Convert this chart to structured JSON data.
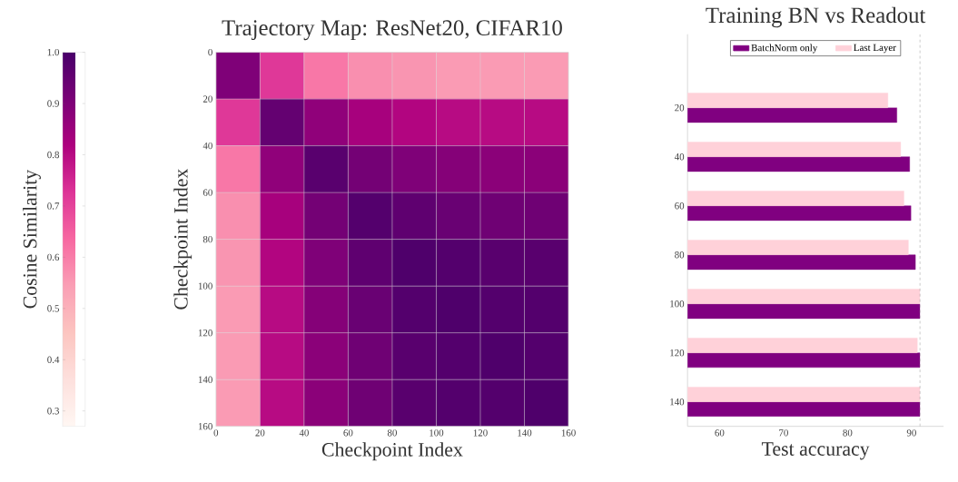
{
  "chart_data": [
    {
      "type": "heatmap",
      "title": "Trajectory Map: ResNet20, CIFAR10",
      "xlabel": "Checkpoint Index",
      "ylabel": "Checkpoint Index",
      "clabel": "Cosine Similarity",
      "x": [
        10,
        30,
        50,
        70,
        90,
        110,
        130,
        150
      ],
      "xlim": [
        0,
        160
      ],
      "xticks": [
        0,
        20,
        40,
        60,
        80,
        100,
        120,
        140,
        160
      ],
      "ylim": [
        160,
        0
      ],
      "yticks": [
        0,
        20,
        40,
        60,
        80,
        100,
        120,
        140,
        160
      ],
      "grid": true,
      "clim": [
        0.27,
        1.0
      ],
      "cticks": [
        0.3,
        0.4,
        0.5,
        0.6,
        0.7,
        0.8,
        0.9,
        {
          "value": 1.0,
          "label": "1.0"
        }
      ],
      "cells": [
        [
          0.9,
          0.72,
          0.61,
          0.57,
          0.56,
          0.55,
          0.55,
          0.55
        ],
        [
          0.72,
          0.95,
          0.87,
          0.83,
          0.81,
          0.8,
          0.8,
          0.8
        ],
        [
          0.61,
          0.87,
          0.97,
          0.92,
          0.9,
          0.89,
          0.88,
          0.88
        ],
        [
          0.57,
          0.83,
          0.92,
          0.98,
          0.96,
          0.94,
          0.93,
          0.93
        ],
        [
          0.56,
          0.81,
          0.9,
          0.96,
          0.99,
          0.98,
          0.97,
          0.97
        ],
        [
          0.55,
          0.8,
          0.89,
          0.94,
          0.98,
          0.99,
          0.98,
          0.98
        ],
        [
          0.55,
          0.8,
          0.88,
          0.93,
          0.97,
          0.98,
          0.99,
          0.98
        ],
        [
          0.55,
          0.8,
          0.88,
          0.93,
          0.97,
          0.98,
          0.98,
          0.99
        ]
      ]
    },
    {
      "type": "bar",
      "orientation": "horizontal",
      "title": "Training BN vs Readout",
      "xlabel": "Test accuracy",
      "categories": [
        null,
        "20",
        "40",
        "60",
        "80",
        "100",
        "120",
        "140"
      ],
      "xlim": [
        55,
        95
      ],
      "xticks": [
        60,
        70,
        80,
        90
      ],
      "legend": "top",
      "series": [
        {
          "name": "BatchNorm only",
          "color": "#800080",
          "values": [
            null,
            87.7,
            89.7,
            89.9,
            90.6,
            91.3,
            91.3,
            91.3
          ]
        },
        {
          "name": "Last Layer",
          "color": "#ffd1d9",
          "values": [
            null,
            86.3,
            88.3,
            88.8,
            89.5,
            91.3,
            90.9,
            91.3
          ]
        }
      ],
      "ref_lines": [
        {
          "axis": "x",
          "value": 91.3,
          "color": "#808080",
          "line_style": "dashed"
        }
      ]
    }
  ]
}
